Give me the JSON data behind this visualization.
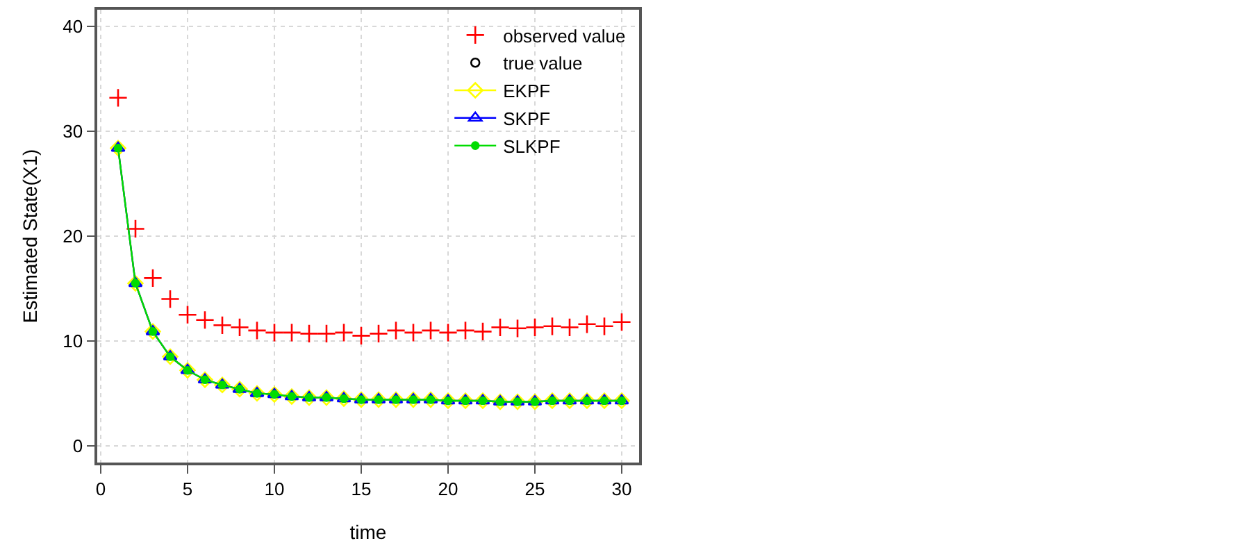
{
  "chart_data": {
    "type": "line",
    "xlabel": "time",
    "ylabel": "Estimated State(X1)",
    "x": [
      1,
      2,
      3,
      4,
      5,
      6,
      7,
      8,
      9,
      10,
      11,
      12,
      13,
      14,
      15,
      16,
      17,
      18,
      19,
      20,
      21,
      22,
      23,
      24,
      25,
      26,
      27,
      28,
      29,
      30
    ],
    "xlim": [
      -0.2,
      31
    ],
    "xticks": [
      0,
      5,
      10,
      15,
      20,
      25,
      30
    ],
    "ylim": [
      -1.6,
      41.6
    ],
    "yticks": [
      0,
      10,
      20,
      30,
      40
    ],
    "grid": true,
    "legend": "top right",
    "series": [
      {
        "name": "observed value",
        "type": "scatter",
        "marker": "cross",
        "color": "#ff0000",
        "values": [
          33.2,
          20.7,
          16.0,
          14.0,
          12.5,
          12.0,
          11.5,
          11.3,
          11.0,
          10.8,
          10.8,
          10.7,
          10.7,
          10.8,
          10.5,
          10.7,
          11.0,
          10.8,
          11.0,
          10.8,
          11.0,
          10.9,
          11.3,
          11.2,
          11.3,
          11.4,
          11.3,
          11.6,
          11.4,
          11.8
        ]
      },
      {
        "name": "true value",
        "type": "scatter",
        "marker": "circle",
        "color": "#000000",
        "values": [
          null,
          null,
          null,
          null,
          null,
          null,
          null,
          null,
          null,
          null,
          null,
          null,
          null,
          null,
          null,
          null,
          null,
          null,
          null,
          null,
          null,
          null,
          null,
          null,
          null,
          null,
          null,
          null,
          null,
          null
        ]
      },
      {
        "name": "EKPF",
        "marker": "diamond",
        "color": "#ffff00",
        "values": [
          28.4,
          15.5,
          10.9,
          8.5,
          7.2,
          6.3,
          5.8,
          5.4,
          5.0,
          4.9,
          4.7,
          4.6,
          4.6,
          4.5,
          4.4,
          4.4,
          4.4,
          4.4,
          4.4,
          4.3,
          4.3,
          4.3,
          4.2,
          4.2,
          4.2,
          4.3,
          4.3,
          4.3,
          4.3,
          4.3
        ]
      },
      {
        "name": "SKPF",
        "marker": "triangle",
        "color": "#0000ff",
        "values": [
          28.4,
          15.5,
          10.9,
          8.5,
          7.2,
          6.3,
          5.8,
          5.4,
          5.0,
          4.9,
          4.7,
          4.6,
          4.6,
          4.5,
          4.4,
          4.4,
          4.4,
          4.4,
          4.4,
          4.3,
          4.3,
          4.3,
          4.2,
          4.2,
          4.2,
          4.3,
          4.3,
          4.3,
          4.3,
          4.3
        ]
      },
      {
        "name": "SLKPF",
        "marker": "circle",
        "color": "#00dd00",
        "values": [
          28.4,
          15.5,
          10.9,
          8.5,
          7.2,
          6.3,
          5.8,
          5.4,
          5.0,
          4.9,
          4.7,
          4.6,
          4.6,
          4.5,
          4.4,
          4.4,
          4.4,
          4.4,
          4.4,
          4.3,
          4.3,
          4.3,
          4.2,
          4.2,
          4.2,
          4.3,
          4.3,
          4.3,
          4.3,
          4.3
        ]
      }
    ]
  }
}
